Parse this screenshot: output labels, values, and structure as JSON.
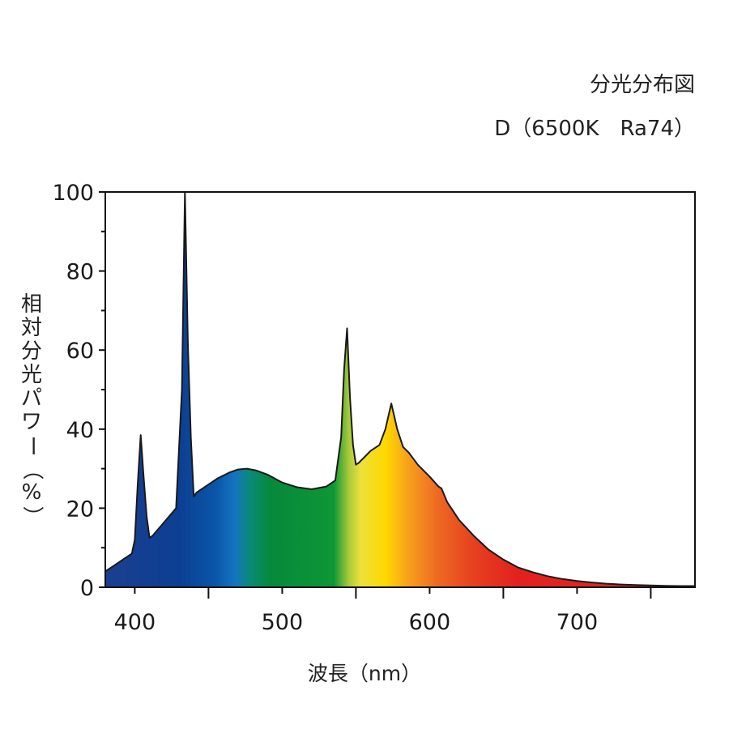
{
  "chart_data": {
    "type": "area",
    "title": "分光分布図",
    "subtitle": "D（6500K　Ra74）",
    "ylabel": "相対分光パワー（%）",
    "xlabel": "波長（nm）",
    "xlim": [
      380,
      780
    ],
    "ylim": [
      0,
      100
    ],
    "x_ticks": [
      400,
      500,
      600,
      700
    ],
    "y_ticks": [
      0,
      20,
      40,
      60,
      80,
      100
    ],
    "grid": false,
    "series": [
      {
        "x": [
          380,
          386,
          392,
          398,
          400,
          402,
          404,
          406,
          408,
          410,
          412,
          420,
          428,
          432,
          434,
          436,
          438,
          440,
          442,
          448,
          456,
          464,
          470,
          476,
          482,
          490,
          500,
          510,
          520,
          530,
          536,
          540,
          542,
          544,
          546,
          548,
          550,
          552,
          556,
          560,
          566,
          570,
          574,
          578,
          582,
          586,
          592,
          600,
          606,
          608,
          612,
          620,
          630,
          640,
          650,
          660,
          670,
          680,
          690,
          700,
          710,
          720,
          730,
          740,
          750,
          760,
          770,
          780
        ],
        "values": [
          4,
          5.5,
          7,
          8.5,
          12,
          26,
          38.5,
          28,
          18,
          12.5,
          13,
          16.5,
          20,
          50,
          100,
          62,
          38,
          23,
          24,
          25.5,
          27.5,
          29,
          29.8,
          30,
          29.6,
          28.5,
          26.5,
          25.3,
          24.8,
          25.5,
          27,
          38,
          55,
          65.5,
          48,
          36,
          31,
          31.5,
          33,
          34.5,
          36,
          40,
          46.5,
          40,
          35.5,
          34,
          31,
          28,
          25.5,
          25,
          21.5,
          17,
          13,
          9.5,
          7,
          5,
          3.8,
          2.8,
          2.1,
          1.6,
          1.2,
          0.9,
          0.7,
          0.55,
          0.45,
          0.35,
          0.3,
          0.3
        ]
      }
    ],
    "spectrum_colors": [
      {
        "nm": 380,
        "color": "#1c3f8f"
      },
      {
        "nm": 430,
        "color": "#0c3f93"
      },
      {
        "nm": 455,
        "color": "#0a56a8"
      },
      {
        "nm": 468,
        "color": "#1575c0"
      },
      {
        "nm": 478,
        "color": "#0a8a78"
      },
      {
        "nm": 492,
        "color": "#06893c"
      },
      {
        "nm": 535,
        "color": "#0e9636"
      },
      {
        "nm": 545,
        "color": "#a6c93a"
      },
      {
        "nm": 553,
        "color": "#ece03c"
      },
      {
        "nm": 570,
        "color": "#ffd800"
      },
      {
        "nm": 585,
        "color": "#f7a21c"
      },
      {
        "nm": 605,
        "color": "#ee6a22"
      },
      {
        "nm": 630,
        "color": "#e6401f"
      },
      {
        "nm": 660,
        "color": "#e2211f"
      },
      {
        "nm": 780,
        "color": "#e3271e"
      }
    ],
    "fill_outline": "#1a1a1a"
  }
}
